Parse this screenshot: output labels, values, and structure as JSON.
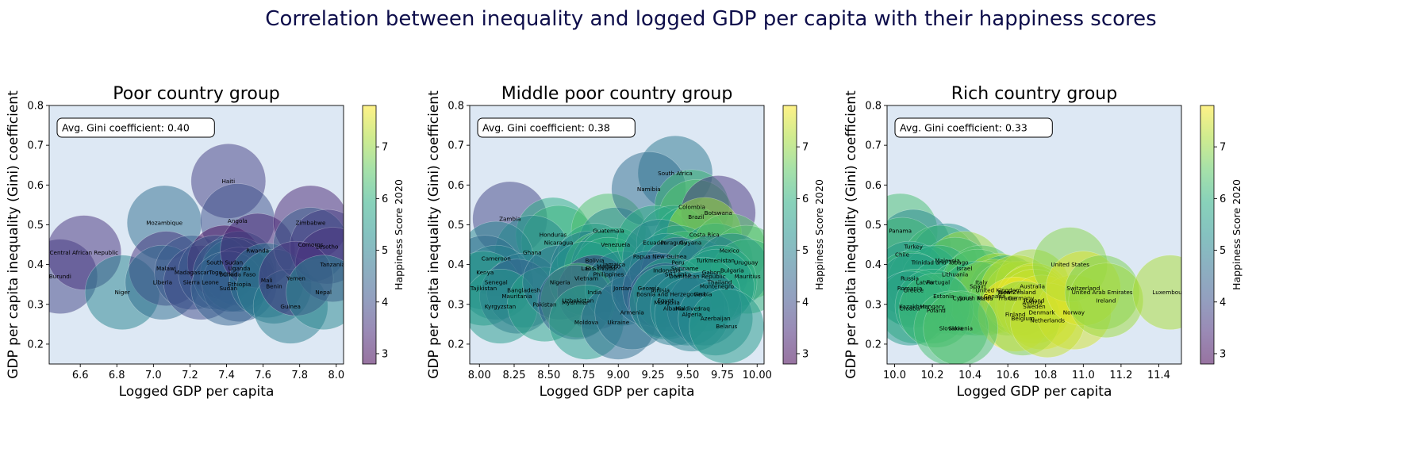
{
  "figure": {
    "title": "Correlation between inequality and logged GDP per capita with their happiness scores",
    "title_color": "#0d0d4a",
    "colormap": "viridis",
    "plot_bg": "#dde8f4",
    "colorbar_label": "Happiness Score 2020",
    "colorbar_ticks": [
      3,
      4,
      5,
      6,
      7
    ],
    "colorbar_range": [
      2.8,
      7.8
    ],
    "bubble_alpha": 0.5
  },
  "chart_data": [
    {
      "type": "scatter",
      "title": "Poor country group",
      "xlabel": "Logged GDP per capita",
      "ylabel": "GDP per capita inequality (Gini) coefficient",
      "xlim": [
        6.43,
        8.04
      ],
      "ylim": [
        0.15,
        0.8
      ],
      "xticks": [
        6.6,
        6.8,
        7.0,
        7.2,
        7.4,
        7.6,
        7.8,
        8.0
      ],
      "yticks": [
        0.2,
        0.3,
        0.4,
        0.5,
        0.6,
        0.7,
        0.8
      ],
      "annotation": "Avg. Gini coefficient: 0.40",
      "points": [
        {
          "name": "Burundi",
          "x": 6.49,
          "y": 0.37,
          "happiness": 3.8
        },
        {
          "name": "Central African Republic",
          "x": 6.62,
          "y": 0.43,
          "happiness": 3.5
        },
        {
          "name": "Niger",
          "x": 6.83,
          "y": 0.33,
          "happiness": 5.0
        },
        {
          "name": "Mozambique",
          "x": 7.06,
          "y": 0.505,
          "happiness": 4.6
        },
        {
          "name": "Malawi",
          "x": 7.07,
          "y": 0.39,
          "happiness": 3.5
        },
        {
          "name": "Liberia",
          "x": 7.05,
          "y": 0.355,
          "happiness": 4.6
        },
        {
          "name": "Madagascar",
          "x": 7.21,
          "y": 0.38,
          "happiness": 4.2
        },
        {
          "name": "Sierra Leone",
          "x": 7.26,
          "y": 0.355,
          "happiness": 3.9
        },
        {
          "name": "Haiti",
          "x": 7.41,
          "y": 0.61,
          "happiness": 3.7
        },
        {
          "name": "Angola",
          "x": 7.46,
          "y": 0.51,
          "happiness": 4.0
        },
        {
          "name": "South Sudan",
          "x": 7.39,
          "y": 0.405,
          "happiness": 2.9
        },
        {
          "name": "Uganda",
          "x": 7.47,
          "y": 0.39,
          "happiness": 4.4
        },
        {
          "name": "Togo",
          "x": 7.34,
          "y": 0.38,
          "happiness": 4.2
        },
        {
          "name": "Burkina Faso",
          "x": 7.46,
          "y": 0.375,
          "happiness": 4.8
        },
        {
          "name": "Chad",
          "x": 7.42,
          "y": 0.375,
          "happiness": 4.4
        },
        {
          "name": "Ethiopia",
          "x": 7.47,
          "y": 0.35,
          "happiness": 4.2
        },
        {
          "name": "Sudan",
          "x": 7.41,
          "y": 0.34,
          "happiness": 4.4
        },
        {
          "name": "Rwanda",
          "x": 7.57,
          "y": 0.435,
          "happiness": 3.3
        },
        {
          "name": "Mali",
          "x": 7.62,
          "y": 0.36,
          "happiness": 4.7
        },
        {
          "name": "Benin",
          "x": 7.66,
          "y": 0.345,
          "happiness": 4.9
        },
        {
          "name": "Guinea",
          "x": 7.75,
          "y": 0.295,
          "happiness": 4.9
        },
        {
          "name": "Zimbabwe",
          "x": 7.86,
          "y": 0.505,
          "happiness": 3.3
        },
        {
          "name": "Comoros",
          "x": 7.86,
          "y": 0.45,
          "happiness": 4.3
        },
        {
          "name": "Lesotho",
          "x": 7.95,
          "y": 0.445,
          "happiness": 3.7
        },
        {
          "name": "Tanzania",
          "x": 7.98,
          "y": 0.4,
          "happiness": 3.5
        },
        {
          "name": "Yemen",
          "x": 7.78,
          "y": 0.365,
          "happiness": 3.5
        },
        {
          "name": "Nepal",
          "x": 7.93,
          "y": 0.33,
          "happiness": 5.1
        }
      ]
    },
    {
      "type": "scatter",
      "title": "Middle poor country group",
      "xlabel": "Logged GDP per capita",
      "ylabel": "GDP per capita inequality (Gini) coefficient",
      "xlim": [
        7.93,
        10.05
      ],
      "ylim": [
        0.15,
        0.8
      ],
      "xticks": [
        8.0,
        8.25,
        8.5,
        8.75,
        9.0,
        9.25,
        9.5,
        9.75,
        10.0
      ],
      "yticks": [
        0.2,
        0.3,
        0.4,
        0.5,
        0.6,
        0.7,
        0.8
      ],
      "annotation": "Avg. Gini coefficient: 0.38",
      "points": [
        {
          "name": "Zambia",
          "x": 8.22,
          "y": 0.515,
          "happiness": 3.8
        },
        {
          "name": "Honduras",
          "x": 8.53,
          "y": 0.475,
          "happiness": 5.9
        },
        {
          "name": "Nicaragua",
          "x": 8.57,
          "y": 0.455,
          "happiness": 6.1
        },
        {
          "name": "Ghana",
          "x": 8.38,
          "y": 0.43,
          "happiness": 5.1
        },
        {
          "name": "Cameroon",
          "x": 8.12,
          "y": 0.415,
          "happiness": 5.1
        },
        {
          "name": "Kenya",
          "x": 8.04,
          "y": 0.38,
          "happiness": 4.6
        },
        {
          "name": "Senegal",
          "x": 8.12,
          "y": 0.355,
          "happiness": 5.0
        },
        {
          "name": "Tajikistan",
          "x": 8.03,
          "y": 0.34,
          "happiness": 5.6
        },
        {
          "name": "Bangladesh",
          "x": 8.32,
          "y": 0.335,
          "happiness": 4.8
        },
        {
          "name": "Mauritania",
          "x": 8.27,
          "y": 0.32,
          "happiness": 4.4
        },
        {
          "name": "Kyrgyzstan",
          "x": 8.15,
          "y": 0.295,
          "happiness": 5.5
        },
        {
          "name": "Pakistan",
          "x": 8.47,
          "y": 0.3,
          "happiness": 5.7
        },
        {
          "name": "Nigeria",
          "x": 8.58,
          "y": 0.355,
          "happiness": 4.7
        },
        {
          "name": "Guatemala",
          "x": 8.93,
          "y": 0.485,
          "happiness": 6.4
        },
        {
          "name": "Venezuela",
          "x": 8.98,
          "y": 0.45,
          "happiness": 5.1
        },
        {
          "name": "Bolivia",
          "x": 8.83,
          "y": 0.41,
          "happiness": 5.7
        },
        {
          "name": "Laos",
          "x": 8.78,
          "y": 0.39,
          "happiness": 4.9
        },
        {
          "name": "El Salvador",
          "x": 8.88,
          "y": 0.39,
          "happiness": 6.3
        },
        {
          "name": "Morocco",
          "x": 8.93,
          "y": 0.395,
          "happiness": 5.1
        },
        {
          "name": "Jamaica",
          "x": 8.97,
          "y": 0.4,
          "happiness": 5.9
        },
        {
          "name": "Philippines",
          "x": 8.93,
          "y": 0.375,
          "happiness": 6.0
        },
        {
          "name": "Vietnam",
          "x": 8.77,
          "y": 0.365,
          "happiness": 5.4
        },
        {
          "name": "India",
          "x": 8.83,
          "y": 0.33,
          "happiness": 3.6
        },
        {
          "name": "Uzbekistan",
          "x": 8.71,
          "y": 0.31,
          "happiness": 6.3
        },
        {
          "name": "Myanmar",
          "x": 8.69,
          "y": 0.305,
          "happiness": 4.3
        },
        {
          "name": "Jordan",
          "x": 9.03,
          "y": 0.34,
          "happiness": 5.0
        },
        {
          "name": "Moldova",
          "x": 8.77,
          "y": 0.255,
          "happiness": 5.6
        },
        {
          "name": "Ukraine",
          "x": 9.0,
          "y": 0.255,
          "happiness": 4.6
        },
        {
          "name": "Armenia",
          "x": 9.1,
          "y": 0.28,
          "happiness": 4.7
        },
        {
          "name": "South Africa",
          "x": 9.41,
          "y": 0.63,
          "happiness": 4.8
        },
        {
          "name": "Namibia",
          "x": 9.22,
          "y": 0.59,
          "happiness": 4.6
        },
        {
          "name": "Colombia",
          "x": 9.53,
          "y": 0.545,
          "happiness": 6.2
        },
        {
          "name": "Brazil",
          "x": 9.56,
          "y": 0.52,
          "happiness": 6.4
        },
        {
          "name": "Botswana",
          "x": 9.72,
          "y": 0.53,
          "happiness": 3.5
        },
        {
          "name": "Ecuador",
          "x": 9.26,
          "y": 0.455,
          "happiness": 5.9
        },
        {
          "name": "Paraguay",
          "x": 9.4,
          "y": 0.455,
          "happiness": 5.7
        },
        {
          "name": "Guyana",
          "x": 9.52,
          "y": 0.455,
          "happiness": 5.9
        },
        {
          "name": "Costa Rica",
          "x": 9.62,
          "y": 0.475,
          "happiness": 7.1
        },
        {
          "name": "Papua New Guinea",
          "x": 9.3,
          "y": 0.42,
          "happiness": 5.0
        },
        {
          "name": "Peru",
          "x": 9.43,
          "y": 0.405,
          "happiness": 5.8
        },
        {
          "name": "Turkmenistan",
          "x": 9.7,
          "y": 0.41,
          "happiness": 5.5
        },
        {
          "name": "Mexico",
          "x": 9.8,
          "y": 0.435,
          "happiness": 6.5
        },
        {
          "name": "Uruguay",
          "x": 9.92,
          "y": 0.405,
          "happiness": 6.4
        },
        {
          "name": "Suriname",
          "x": 9.48,
          "y": 0.39,
          "happiness": 6.3
        },
        {
          "name": "Indonesia",
          "x": 9.35,
          "y": 0.385,
          "happiness": 5.3
        },
        {
          "name": "Sri Lanka",
          "x": 9.43,
          "y": 0.375,
          "happiness": 4.3
        },
        {
          "name": "Dominican Republic",
          "x": 9.57,
          "y": 0.37,
          "happiness": 5.7
        },
        {
          "name": "Gabon",
          "x": 9.67,
          "y": 0.38,
          "happiness": 4.8
        },
        {
          "name": "Bulgaria",
          "x": 9.82,
          "y": 0.385,
          "happiness": 5.1
        },
        {
          "name": "Mauritius",
          "x": 9.93,
          "y": 0.37,
          "happiness": 6.1
        },
        {
          "name": "Thailand",
          "x": 9.73,
          "y": 0.355,
          "happiness": 5.9
        },
        {
          "name": "Montenegro",
          "x": 9.71,
          "y": 0.345,
          "happiness": 5.6
        },
        {
          "name": "Georgia",
          "x": 9.22,
          "y": 0.34,
          "happiness": 4.7
        },
        {
          "name": "Tunisia",
          "x": 9.3,
          "y": 0.335,
          "happiness": 4.4
        },
        {
          "name": "Bosnia and Herzegovina",
          "x": 9.38,
          "y": 0.325,
          "happiness": 5.7
        },
        {
          "name": "Serbia",
          "x": 9.61,
          "y": 0.325,
          "happiness": 5.8
        },
        {
          "name": "Egypt",
          "x": 9.34,
          "y": 0.31,
          "happiness": 4.2
        },
        {
          "name": "Mongolia",
          "x": 9.35,
          "y": 0.305,
          "happiness": 5.5
        },
        {
          "name": "Albania",
          "x": 9.4,
          "y": 0.29,
          "happiness": 4.9
        },
        {
          "name": "Maldives",
          "x": 9.5,
          "y": 0.29,
          "happiness": 5.2
        },
        {
          "name": "Iraq",
          "x": 9.62,
          "y": 0.29,
          "happiness": 4.8
        },
        {
          "name": "Algeria",
          "x": 9.53,
          "y": 0.275,
          "happiness": 5.0
        },
        {
          "name": "Azerbaijan",
          "x": 9.7,
          "y": 0.265,
          "happiness": 5.2
        },
        {
          "name": "Belarus",
          "x": 9.78,
          "y": 0.245,
          "happiness": 5.5
        }
      ]
    },
    {
      "type": "scatter",
      "title": "Rich country group",
      "xlabel": "Logged GDP per capita",
      "ylabel": "GDP per capita inequality (Gini) coefficient",
      "xlim": [
        9.96,
        11.52
      ],
      "ylim": [
        0.15,
        0.8
      ],
      "xticks": [
        10.0,
        10.2,
        10.4,
        10.6,
        10.8,
        11.0,
        11.2,
        11.4
      ],
      "yticks": [
        0.2,
        0.3,
        0.4,
        0.5,
        0.6,
        0.7,
        0.8
      ],
      "annotation": "Avg. Gini coefficient: 0.33",
      "points": [
        {
          "name": "Panama",
          "x": 10.03,
          "y": 0.485,
          "happiness": 6.3
        },
        {
          "name": "Turkey",
          "x": 10.1,
          "y": 0.445,
          "happiness": 5.1
        },
        {
          "name": "Chile",
          "x": 10.04,
          "y": 0.425,
          "happiness": 6.2
        },
        {
          "name": "Malaysia",
          "x": 10.28,
          "y": 0.41,
          "happiness": 5.4
        },
        {
          "name": "Trinidad and Tobago",
          "x": 10.24,
          "y": 0.405,
          "happiness": 6.2
        },
        {
          "name": "Israel",
          "x": 10.37,
          "y": 0.39,
          "happiness": 7.1
        },
        {
          "name": "Lithuania",
          "x": 10.32,
          "y": 0.375,
          "happiness": 6.2
        },
        {
          "name": "Russia",
          "x": 10.08,
          "y": 0.365,
          "happiness": 5.5
        },
        {
          "name": "Latvia",
          "x": 10.16,
          "y": 0.355,
          "happiness": 5.9
        },
        {
          "name": "Portugal",
          "x": 10.23,
          "y": 0.355,
          "happiness": 5.9
        },
        {
          "name": "Romania",
          "x": 10.08,
          "y": 0.34,
          "happiness": 6.1
        },
        {
          "name": "Greece",
          "x": 10.1,
          "y": 0.335,
          "happiness": 5.5
        },
        {
          "name": "Estonia",
          "x": 10.26,
          "y": 0.32,
          "happiness": 6.0
        },
        {
          "name": "Cyprus",
          "x": 10.36,
          "y": 0.315,
          "happiness": 6.2
        },
        {
          "name": "Italy",
          "x": 10.46,
          "y": 0.355,
          "happiness": 6.4
        },
        {
          "name": "Spain",
          "x": 10.44,
          "y": 0.345,
          "happiness": 6.4
        },
        {
          "name": "United Kingdom",
          "x": 10.55,
          "y": 0.335,
          "happiness": 7.2
        },
        {
          "name": "Japan",
          "x": 10.59,
          "y": 0.33,
          "happiness": 5.9
        },
        {
          "name": "Canada",
          "x": 10.53,
          "y": 0.32,
          "happiness": 7.2
        },
        {
          "name": "South Korea",
          "x": 10.43,
          "y": 0.315,
          "happiness": 5.9
        },
        {
          "name": "Malta",
          "x": 10.48,
          "y": 0.315,
          "happiness": 6.8
        },
        {
          "name": "France",
          "x": 10.6,
          "y": 0.315,
          "happiness": 6.7
        },
        {
          "name": "Germany",
          "x": 10.67,
          "y": 0.315,
          "happiness": 7.1
        },
        {
          "name": "Australia",
          "x": 10.73,
          "y": 0.345,
          "happiness": 7.2
        },
        {
          "name": "New Zealand",
          "x": 10.65,
          "y": 0.33,
          "happiness": 7.3
        },
        {
          "name": "Iceland",
          "x": 10.74,
          "y": 0.31,
          "happiness": 7.5
        },
        {
          "name": "Austria",
          "x": 10.73,
          "y": 0.305,
          "happiness": 7.3
        },
        {
          "name": "Sweden",
          "x": 10.74,
          "y": 0.295,
          "happiness": 7.4
        },
        {
          "name": "Finland",
          "x": 10.64,
          "y": 0.275,
          "happiness": 7.8
        },
        {
          "name": "Denmark",
          "x": 10.78,
          "y": 0.28,
          "happiness": 7.6
        },
        {
          "name": "Belgium",
          "x": 10.68,
          "y": 0.265,
          "happiness": 6.9
        },
        {
          "name": "Norway",
          "x": 10.95,
          "y": 0.28,
          "happiness": 7.5
        },
        {
          "name": "Netherlands",
          "x": 10.81,
          "y": 0.26,
          "happiness": 7.4
        },
        {
          "name": "Kazakhstan",
          "x": 10.11,
          "y": 0.295,
          "happiness": 6.1
        },
        {
          "name": "Croatia",
          "x": 10.08,
          "y": 0.29,
          "happiness": 5.5
        },
        {
          "name": "Hungary",
          "x": 10.2,
          "y": 0.295,
          "happiness": 6.0
        },
        {
          "name": "Poland",
          "x": 10.22,
          "y": 0.285,
          "happiness": 6.2
        },
        {
          "name": "Slovakia",
          "x": 10.3,
          "y": 0.24,
          "happiness": 6.3
        },
        {
          "name": "Slovenia",
          "x": 10.35,
          "y": 0.24,
          "happiness": 6.4
        },
        {
          "name": "United States",
          "x": 10.93,
          "y": 0.4,
          "happiness": 6.9
        },
        {
          "name": "Switzerland",
          "x": 11.0,
          "y": 0.34,
          "happiness": 7.6
        },
        {
          "name": "United Arab Emirates",
          "x": 11.1,
          "y": 0.33,
          "happiness": 6.8
        },
        {
          "name": "Ireland",
          "x": 11.12,
          "y": 0.31,
          "happiness": 7.1
        },
        {
          "name": "Luxembourg",
          "x": 11.46,
          "y": 0.33,
          "happiness": 7.2
        }
      ]
    }
  ]
}
